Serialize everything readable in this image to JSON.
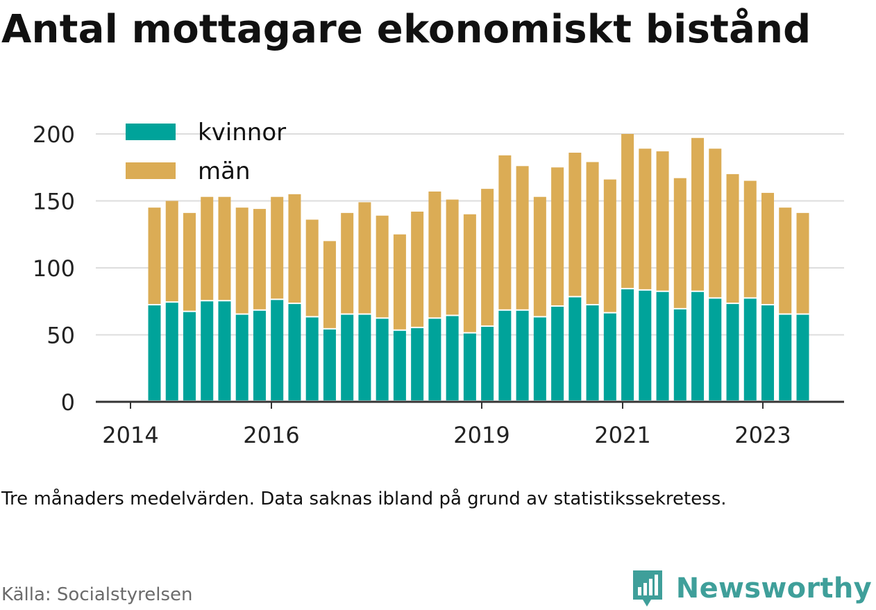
{
  "title": "Antal mottagare ekonomiskt bistånd",
  "note": "Tre månaders medelvärden. Data saknas ibland på grund av statistikssekretess.",
  "source": "Källa: Socialstyrelsen",
  "brand": {
    "name": "Newsworthy",
    "icon": "newsworthy-logo-icon",
    "color": "#3f9f9a"
  },
  "colors": {
    "kvinnor": "#00a39a",
    "man": "#dbac55",
    "grid": "#dddddd",
    "axis": "#333333",
    "tick_text": "#222222"
  },
  "chart_data": {
    "type": "bar",
    "stacked": true,
    "x_tick_labels": [
      "2014",
      "2016",
      "2019",
      "2021",
      "2023"
    ],
    "y_ticks": [
      0,
      50,
      100,
      150,
      200
    ],
    "ylim": [
      0,
      200
    ],
    "grid": true,
    "legend_position": "top-left",
    "series": [
      {
        "name": "kvinnor",
        "color": "#00a39a",
        "values": [
          72,
          74,
          67,
          75,
          75,
          65,
          68,
          76,
          73,
          63,
          54,
          65,
          65,
          62,
          53,
          55,
          62,
          64,
          51,
          56,
          68,
          68,
          63,
          71,
          78,
          72,
          66,
          84,
          83,
          82,
          69,
          82,
          77,
          73,
          77,
          72,
          65,
          65
        ]
      },
      {
        "name": "män",
        "color": "#dbac55",
        "values": [
          73,
          76,
          74,
          78,
          78,
          80,
          76,
          77,
          82,
          73,
          66,
          76,
          84,
          77,
          72,
          87,
          95,
          87,
          89,
          103,
          116,
          108,
          90,
          104,
          108,
          107,
          100,
          116,
          106,
          105,
          98,
          115,
          112,
          97,
          88,
          84,
          80,
          76
        ]
      }
    ]
  }
}
